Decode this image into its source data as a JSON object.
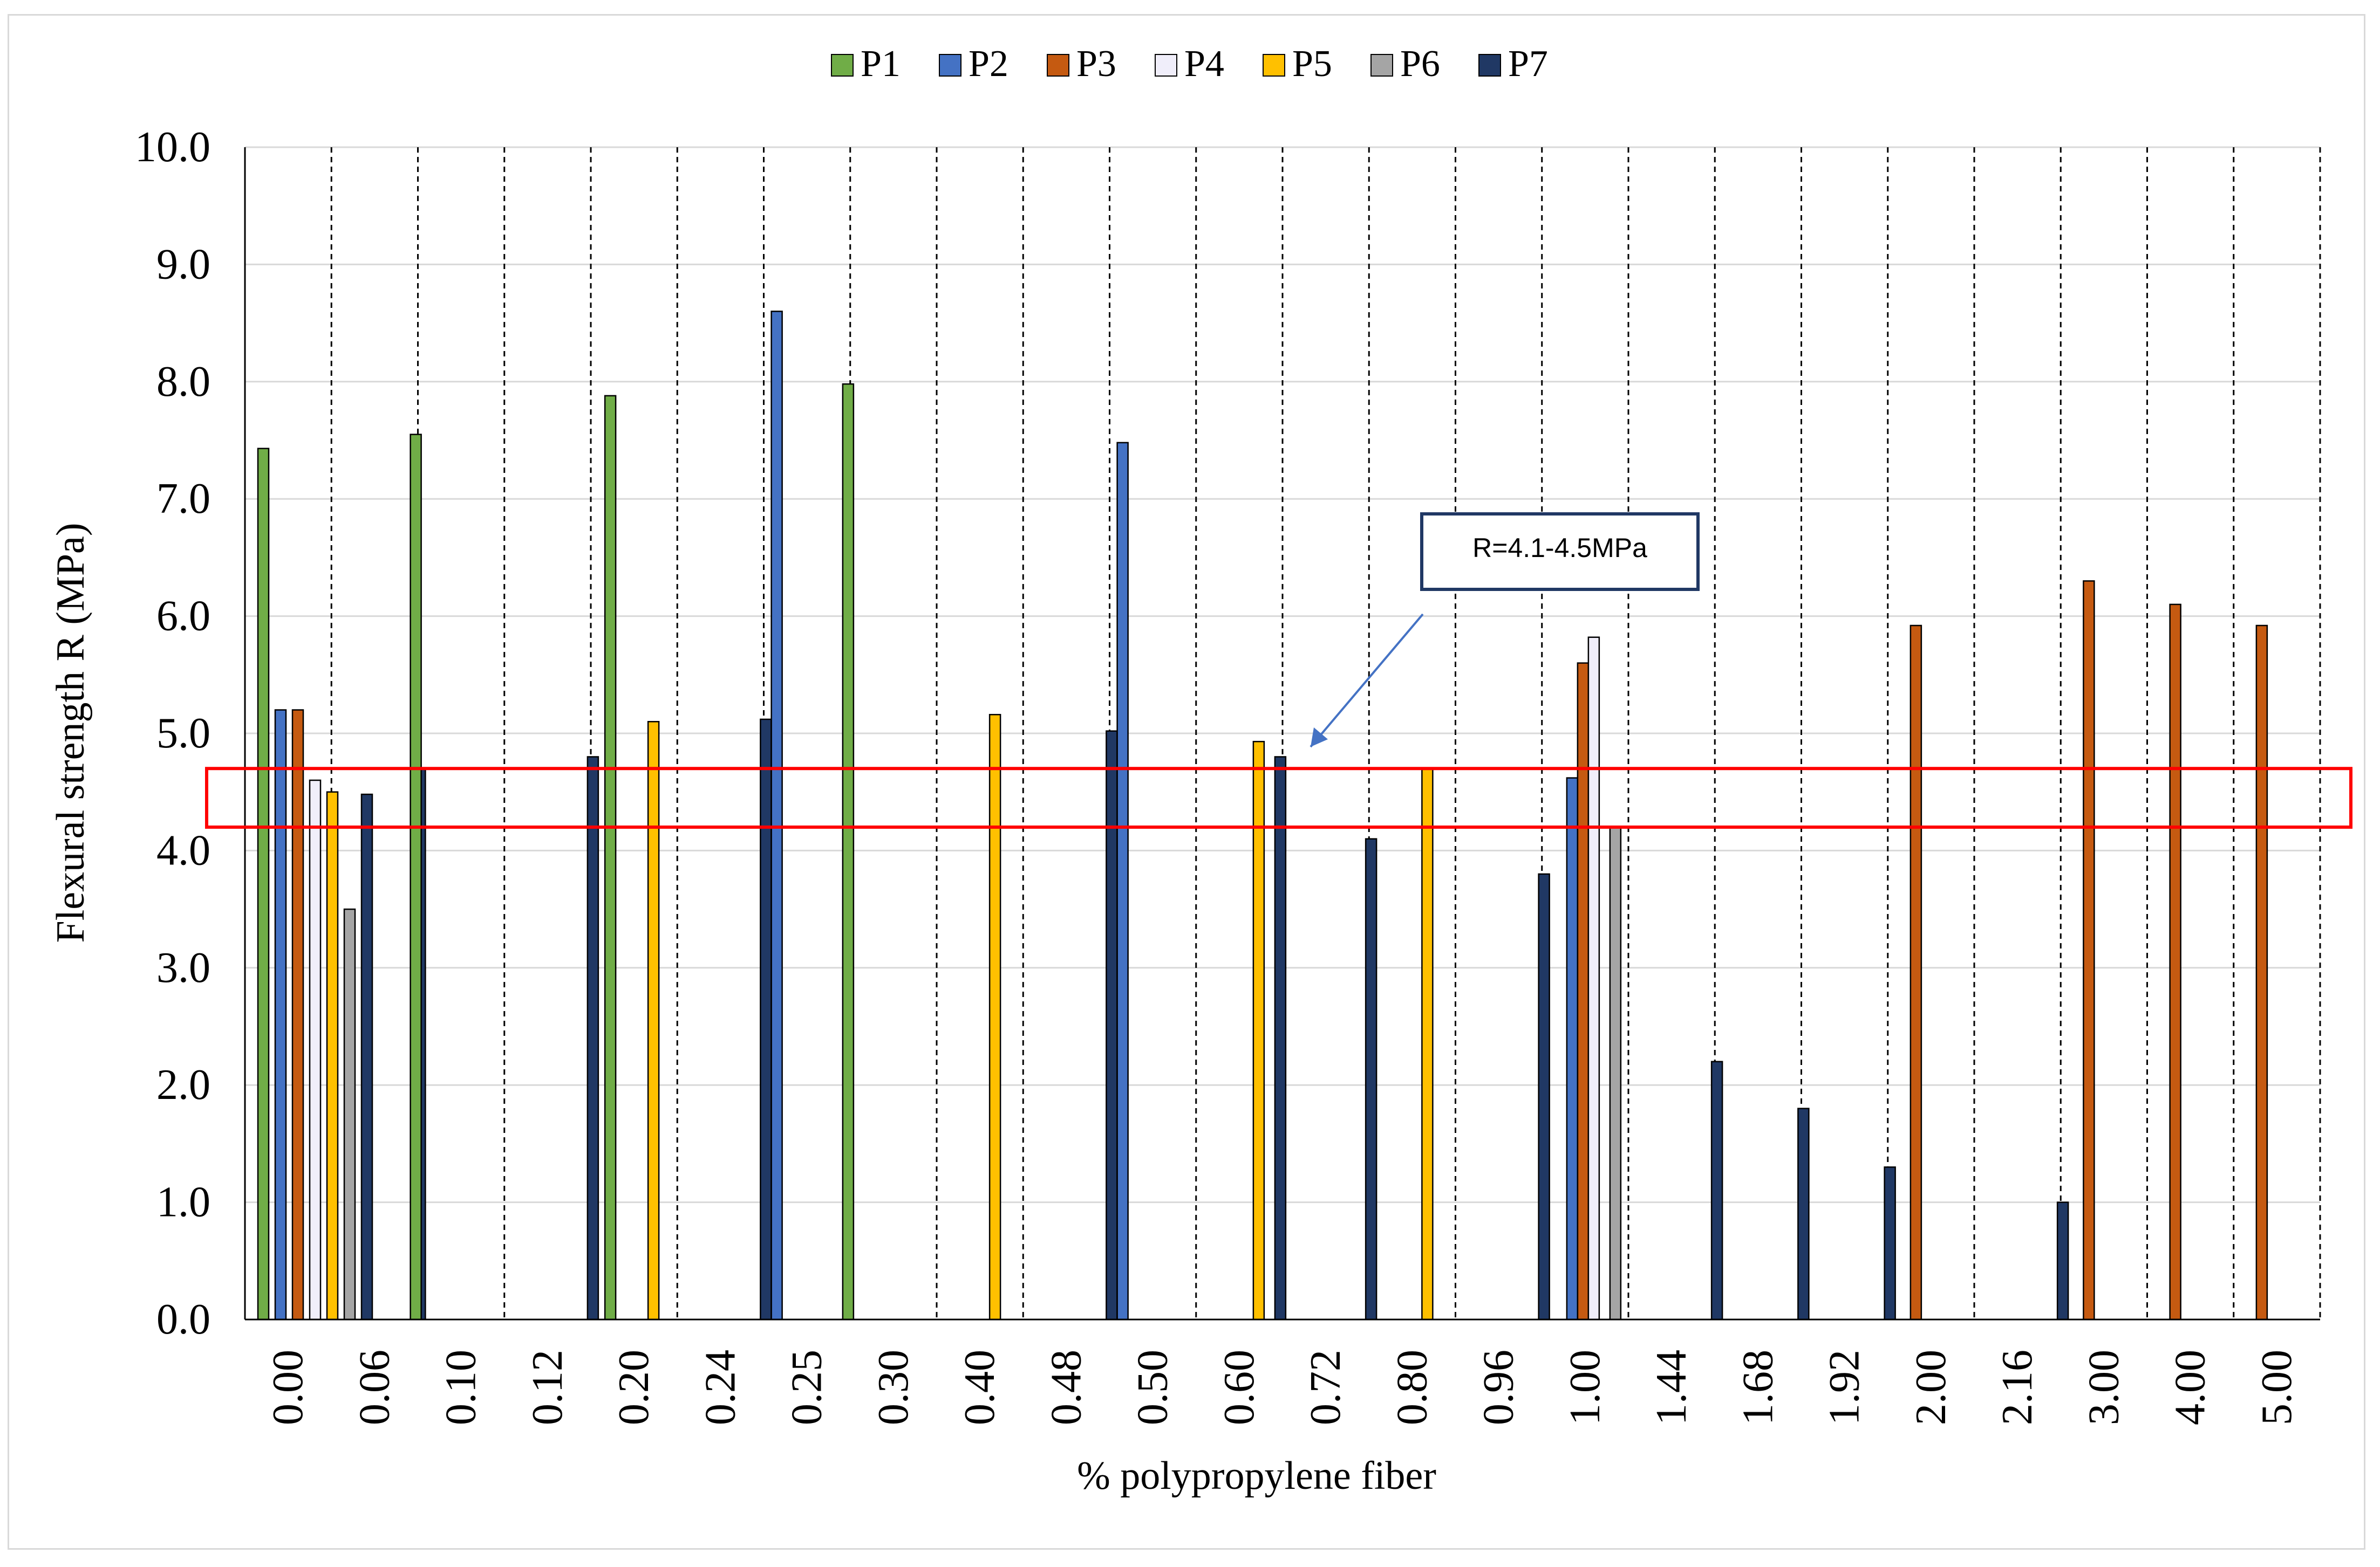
{
  "chart_data": {
    "type": "bar",
    "title": "",
    "xlabel": "% polypropylene fiber",
    "ylabel": "Flexural strength R (MPa)",
    "ylim": [
      0,
      10
    ],
    "yticks": [
      "0.0",
      "1.0",
      "2.0",
      "3.0",
      "4.0",
      "5.0",
      "6.0",
      "7.0",
      "8.0",
      "9.0",
      "10.0"
    ],
    "grid": true,
    "legend_position": "top",
    "categories": [
      "0.00",
      "0.06",
      "0.10",
      "0.12",
      "0.20",
      "0.24",
      "0.25",
      "0.30",
      "0.40",
      "0.48",
      "0.50",
      "0.60",
      "0.72",
      "0.80",
      "0.96",
      "1.00",
      "1.44",
      "1.68",
      "1.92",
      "2.00",
      "2.16",
      "3.00",
      "4.00",
      "5.00"
    ],
    "series": [
      {
        "name": "P1",
        "color": "#70ad47",
        "values": [
          7.43,
          null,
          7.55,
          null,
          7.88,
          null,
          null,
          7.98,
          null,
          null,
          null,
          null,
          null,
          null,
          null,
          null,
          null,
          null,
          null,
          null,
          null,
          null,
          null,
          null
        ]
      },
      {
        "name": "P2",
        "color": "#4472c4",
        "values": [
          5.2,
          null,
          null,
          null,
          null,
          null,
          8.6,
          null,
          null,
          null,
          7.48,
          null,
          null,
          null,
          null,
          4.62,
          null,
          null,
          null,
          null,
          null,
          null,
          null,
          null
        ]
      },
      {
        "name": "P3",
        "color": "#c55a11",
        "values": [
          5.2,
          null,
          null,
          null,
          null,
          null,
          null,
          null,
          null,
          null,
          null,
          null,
          null,
          null,
          null,
          5.6,
          null,
          null,
          null,
          5.92,
          null,
          6.3,
          6.1,
          5.92
        ]
      },
      {
        "name": "P4",
        "color": "#f0eefa",
        "values": [
          4.6,
          null,
          null,
          null,
          null,
          null,
          null,
          null,
          null,
          null,
          null,
          null,
          null,
          null,
          null,
          5.82,
          null,
          null,
          null,
          null,
          null,
          null,
          null,
          null
        ]
      },
      {
        "name": "P5",
        "color": "#ffc000",
        "values": [
          4.5,
          null,
          null,
          null,
          5.1,
          null,
          null,
          null,
          5.16,
          null,
          null,
          4.93,
          null,
          4.7,
          null,
          null,
          null,
          null,
          null,
          null,
          null,
          null,
          null,
          null
        ]
      },
      {
        "name": "P6",
        "color": "#a5a5a5",
        "values": [
          3.5,
          null,
          null,
          null,
          null,
          null,
          null,
          null,
          null,
          null,
          null,
          null,
          null,
          null,
          null,
          4.2,
          null,
          null,
          null,
          null,
          null,
          null,
          null,
          null
        ]
      },
      {
        "name": "P7",
        "color": "#203864",
        "values": [
          4.48,
          4.7,
          null,
          4.8,
          null,
          5.12,
          null,
          null,
          null,
          5.02,
          null,
          4.8,
          4.1,
          null,
          3.8,
          null,
          2.2,
          1.8,
          1.3,
          null,
          1.0,
          null,
          null,
          null
        ]
      }
    ],
    "annotation": {
      "text": "R=4.1-4.5MPa",
      "highlight_range": [
        4.2,
        4.7
      ],
      "highlight_color": "#ff0000"
    }
  }
}
